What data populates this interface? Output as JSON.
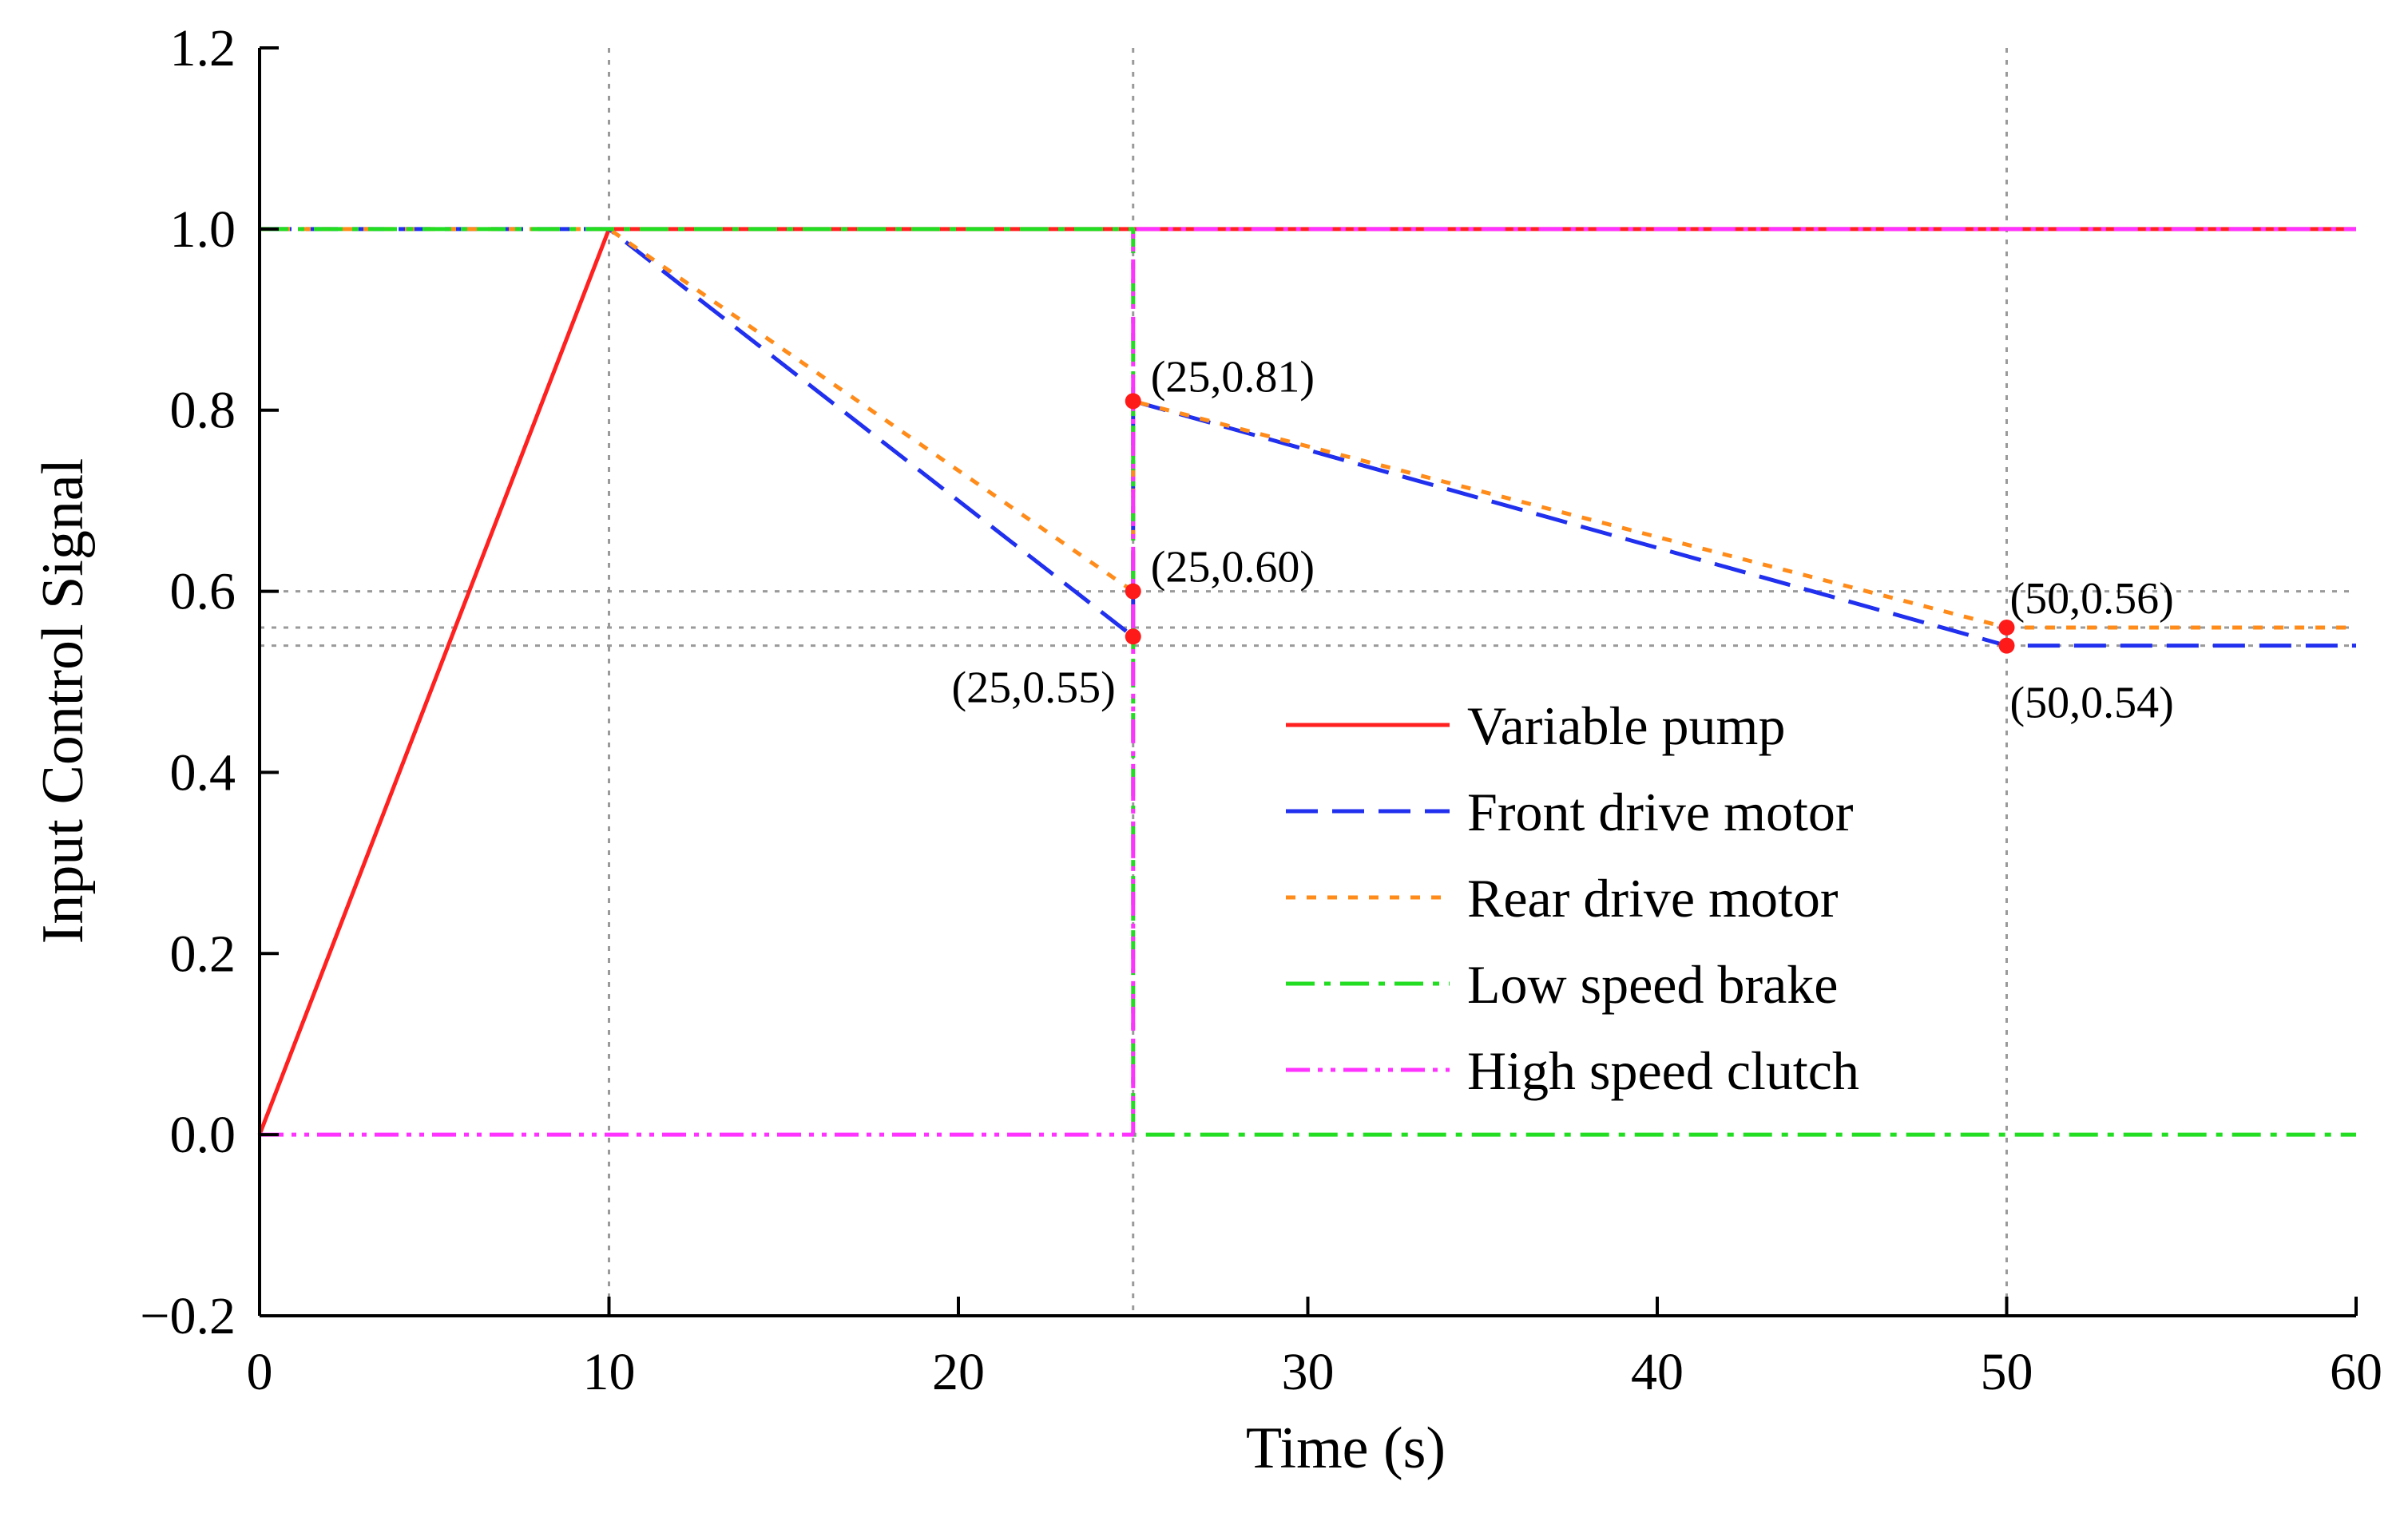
{
  "chart_data": {
    "type": "line",
    "title": "",
    "xlabel": "Time (s)",
    "ylabel": "Input Control Signal",
    "xlim": [
      0,
      60
    ],
    "ylim": [
      -0.2,
      1.2
    ],
    "xticks": [
      0,
      10,
      20,
      30,
      40,
      50,
      60
    ],
    "xtick_labels": [
      "0",
      "10",
      "20",
      "30",
      "40",
      "50",
      "60"
    ],
    "yticks": [
      -0.2,
      0.0,
      0.2,
      0.4,
      0.6,
      0.8,
      1.0,
      1.2
    ],
    "ytick_labels": [
      "−0.2",
      "0.0",
      "0.2",
      "0.4",
      "0.6",
      "0.8",
      "1.0",
      "1.2"
    ],
    "legend_position": "center-right",
    "reference_lines": {
      "vertical_x": [
        10,
        25,
        50
      ],
      "horizontal_y": [
        0.6,
        0.56,
        0.54
      ]
    },
    "series": [
      {
        "name": "Variable pump",
        "color": "#ff2020",
        "style": "solid",
        "x": [
          0,
          10,
          60
        ],
        "y": [
          0,
          1.0,
          1.0
        ]
      },
      {
        "name": "Front drive motor",
        "color": "#2030ee",
        "style": "dashed",
        "x": [
          0,
          10,
          25,
          25,
          50,
          60
        ],
        "y": [
          1.0,
          1.0,
          0.55,
          0.81,
          0.54,
          0.54
        ]
      },
      {
        "name": "Rear drive motor",
        "color": "#ff8c1a",
        "style": "dotted",
        "x": [
          0,
          10,
          25,
          25,
          50,
          60
        ],
        "y": [
          1.0,
          1.0,
          0.6,
          0.81,
          0.56,
          0.56
        ]
      },
      {
        "name": "Low speed brake",
        "color": "#22dd22",
        "style": "dashdot",
        "x": [
          0,
          25,
          25,
          60
        ],
        "y": [
          1.0,
          1.0,
          0.0,
          0.0
        ]
      },
      {
        "name": "High speed clutch",
        "color": "#ff33ff",
        "style": "dashdotdot",
        "x": [
          0,
          25,
          25,
          60
        ],
        "y": [
          0.0,
          0.0,
          1.0,
          1.0
        ]
      }
    ],
    "annotations": [
      {
        "text": "(25,0.81)",
        "x": 25,
        "y": 0.81,
        "anchor": "right"
      },
      {
        "text": "(25,0.60)",
        "x": 25,
        "y": 0.6,
        "anchor": "right"
      },
      {
        "text": "(25,0.55)",
        "x": 25,
        "y": 0.55,
        "anchor": "left-below"
      },
      {
        "text": "(50,0.56)",
        "x": 50,
        "y": 0.56,
        "anchor": "right-above"
      },
      {
        "text": "(50,0.54)",
        "x": 50,
        "y": 0.54,
        "anchor": "right-below"
      }
    ]
  }
}
